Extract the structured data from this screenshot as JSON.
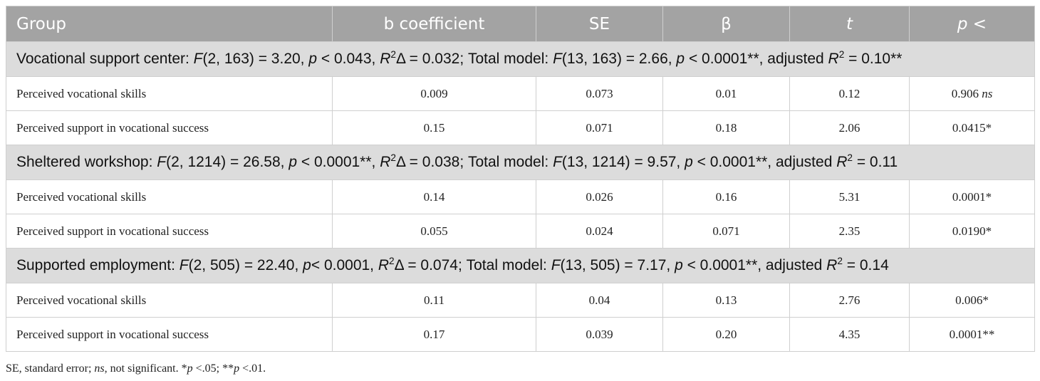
{
  "table": {
    "header": [
      "Group",
      "b coefficient",
      "SE",
      "β",
      [
        {
          "italic": "t"
        }
      ],
      [
        {
          "italic": "p"
        },
        " <"
      ]
    ],
    "groups": [
      {
        "title": [
          "Vocational support center: ",
          {
            "italic": "F"
          },
          "(2, 163) = 3.20, ",
          {
            "italic": "p"
          },
          " < 0.043, ",
          {
            "italic": "R"
          },
          {
            "sup": "2"
          },
          "Δ = 0.032; Total model: ",
          {
            "italic": "F"
          },
          "(13, 163) = 2.66, ",
          {
            "italic": "p"
          },
          " < 0.0001**, adjusted ",
          {
            "italic": "R"
          },
          {
            "sup": "2"
          },
          " = 0.10**"
        ],
        "rows": [
          [
            "Perceived vocational skills",
            "0.009",
            "0.073",
            "0.01",
            "0.12",
            [
              "0.906 ",
              {
                "italic": "ns"
              }
            ]
          ],
          [
            "Perceived support in vocational success",
            "0.15",
            "0.071",
            "0.18",
            "2.06",
            "0.0415*"
          ]
        ]
      },
      {
        "title": [
          "Sheltered workshop: ",
          {
            "italic": "F"
          },
          "(2, 1214) = 26.58, ",
          {
            "italic": "p"
          },
          " < 0.0001**, ",
          {
            "italic": "R"
          },
          {
            "sup": "2"
          },
          "Δ = 0.038; Total model: ",
          {
            "italic": "F"
          },
          "(13, 1214) = 9.57, ",
          {
            "italic": "p"
          },
          " < 0.0001**, adjusted ",
          {
            "italic": "R"
          },
          {
            "sup": "2"
          },
          " = 0.11"
        ],
        "rows": [
          [
            "Perceived vocational skills",
            "0.14",
            "0.026",
            "0.16",
            "5.31",
            "0.0001*"
          ],
          [
            "Perceived support in vocational success",
            "0.055",
            "0.024",
            "0.071",
            "2.35",
            "0.0190*"
          ]
        ]
      },
      {
        "title": [
          "Supported employment: ",
          {
            "italic": "F"
          },
          "(2, 505) = 22.40, ",
          {
            "italic": "p"
          },
          "< 0.0001, ",
          {
            "italic": "R"
          },
          {
            "sup": "2"
          },
          "Δ = 0.074; Total model: ",
          {
            "italic": "F"
          },
          "(13, 505) = 7.17, ",
          {
            "italic": "p"
          },
          " < 0.0001**, adjusted ",
          {
            "italic": "R"
          },
          {
            "sup": "2"
          },
          " = 0.14"
        ],
        "rows": [
          [
            "Perceived vocational skills",
            "0.11",
            "0.04",
            "0.13",
            "2.76",
            "0.006*"
          ],
          [
            "Perceived support in vocational success",
            "0.17",
            "0.039",
            "0.20",
            "4.35",
            "0.0001**"
          ]
        ]
      }
    ],
    "footnote": [
      "SE, standard error; ",
      {
        "italic": "ns"
      },
      ", not significant. *",
      {
        "italic": "p"
      },
      " <.05; **",
      {
        "italic": "p"
      },
      " <.01."
    ]
  }
}
